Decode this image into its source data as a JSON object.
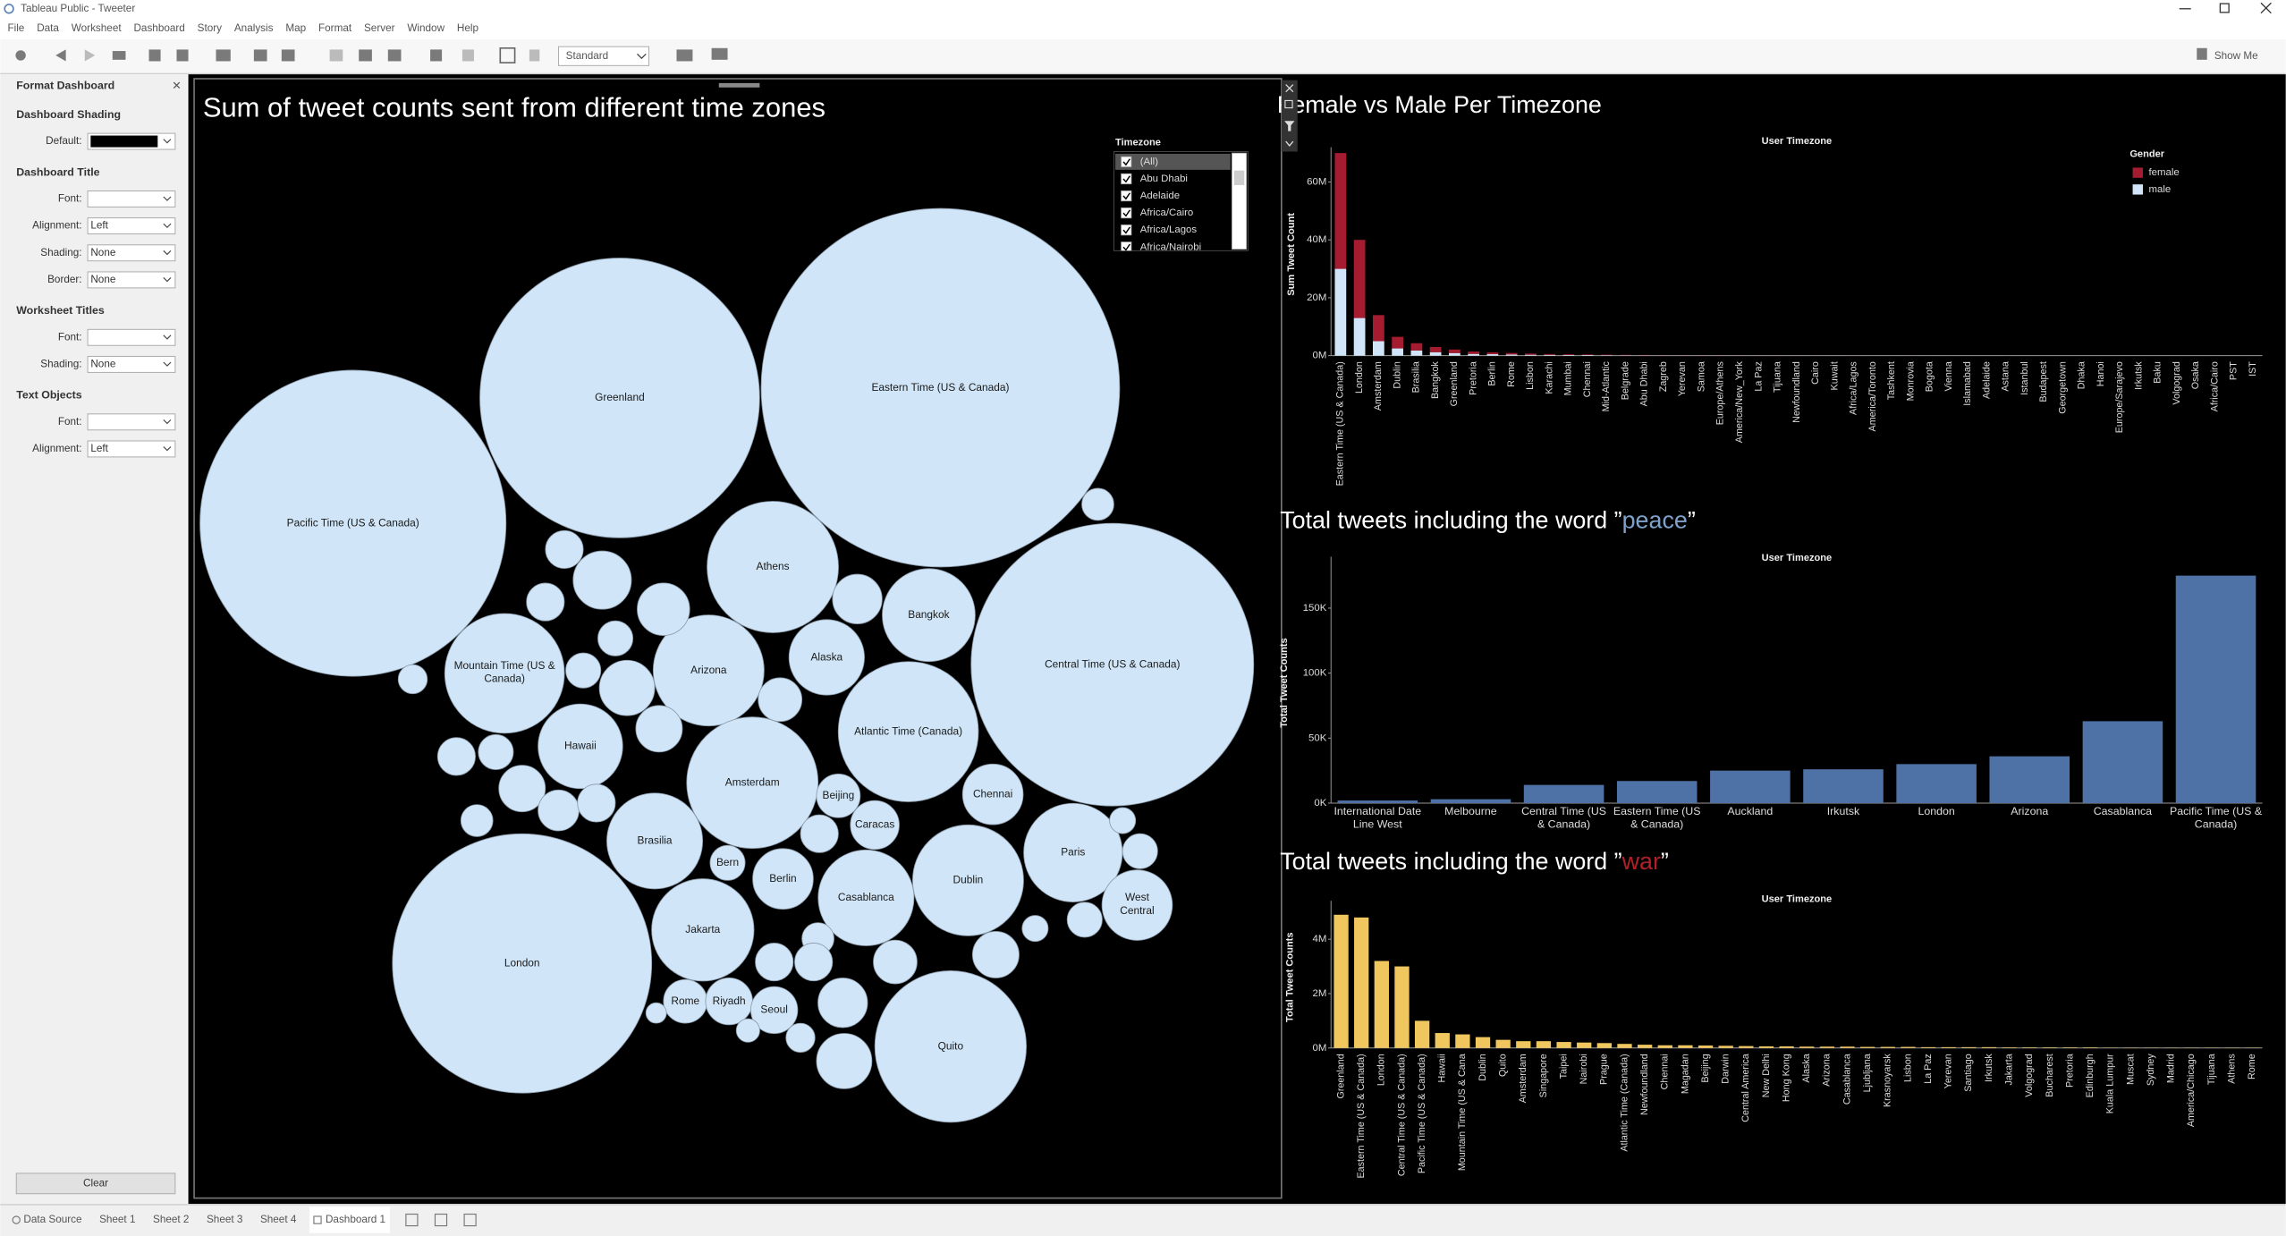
{
  "window": {
    "title": "Tableau Public - Tweeter"
  },
  "menu": [
    "File",
    "Data",
    "Worksheet",
    "Dashboard",
    "Story",
    "Analysis",
    "Map",
    "Format",
    "Server",
    "Window",
    "Help"
  ],
  "toolbar": {
    "view": "Standard",
    "show_me": "Show Me"
  },
  "format_panel": {
    "title": "Format Dashboard",
    "sections": [
      {
        "heading": "Dashboard Shading",
        "fields": [
          {
            "label": "Default:",
            "color": "#000000"
          }
        ]
      },
      {
        "heading": "Dashboard Title",
        "fields": [
          {
            "label": "Font:"
          },
          {
            "label": "Alignment:",
            "value": "Left"
          },
          {
            "label": "Shading:",
            "value": "None"
          },
          {
            "label": "Border:",
            "value": "None"
          }
        ]
      },
      {
        "heading": "Worksheet Titles",
        "fields": [
          {
            "label": "Font:"
          },
          {
            "label": "Shading:",
            "value": "None"
          }
        ]
      },
      {
        "heading": "Text Objects",
        "fields": [
          {
            "label": "Font:"
          },
          {
            "label": "Alignment:",
            "value": "Left"
          }
        ]
      }
    ],
    "clear": "Clear"
  },
  "filter": {
    "title": "Timezone",
    "items": [
      "(All)",
      "Abu Dhabi",
      "Adelaide",
      "Africa/Cairo",
      "Africa/Lagos",
      "Africa/Nairobi"
    ]
  },
  "tabs": [
    "Data Source",
    "Sheet 1",
    "Sheet 2",
    "Sheet 3",
    "Sheet 4",
    "Dashboard 1"
  ],
  "active_tab": 5,
  "chart_data": [
    {
      "type": "bubble",
      "title": "Sum of tweet counts sent from different time zones",
      "color": "#d0e6f8",
      "categories": [
        "Pacific Time (US & Canada)",
        "Greenland",
        "Eastern Time (US & Canada)",
        "Central Time (US & Canada)",
        "London",
        "Quito",
        "Athens",
        "Mountain Time (US & Canada)",
        "Arizona",
        "Atlantic Time (Canada)",
        "Amsterdam",
        "Hawaii",
        "Bangkok",
        "Alaska",
        "Brasilia",
        "Jakarta",
        "Casablanca",
        "Dublin",
        "Paris",
        "West Central",
        "Chennai",
        "Berlin",
        "Bern",
        "Beijing",
        "Caracas",
        "Rome",
        "Riyadh",
        "Seoul",
        null,
        null,
        null,
        null,
        null,
        null,
        null,
        null,
        null,
        null,
        null,
        null,
        null,
        null,
        null,
        null,
        null,
        null,
        null,
        null,
        null,
        null,
        null,
        null,
        null,
        null,
        null,
        null,
        null,
        null,
        null,
        null,
        null
      ],
      "values": [
        51000000,
        42600000,
        70000000,
        43500000,
        36600000,
        12500000,
        9400000,
        7800000,
        6700000,
        10700000,
        9400000,
        3900000,
        4700000,
        3100000,
        5000000,
        5700000,
        5000000,
        6700000,
        5300000,
        2700000,
        2000000,
        2000000,
        670000,
        1040000,
        1300000,
        1040000,
        1200000,
        1200000,
        780000,
        1850000,
        780000,
        1500000,
        670000,
        1670000,
        670000,
        1180000,
        780000,
        670000,
        1180000,
        910000,
        780000,
        560000,
        460000,
        560000,
        780000,
        780000,
        1340000,
        1670000,
        1040000,
        1340000,
        1180000,
        560000,
        670000,
        670000,
        370000,
        370000,
        460000,
        300000,
        230000,
        780000,
        1040000
      ]
    },
    {
      "type": "bar",
      "stacked": true,
      "title": "Female vs Male Per Timezone",
      "x_header": "User Timezone",
      "y_label": "Sum Tweet Count",
      "legend_title": "Gender",
      "categories": [
        "Eastern Time (US & Canada)",
        "London",
        "Amsterdam",
        "Dublin",
        "Brasilia",
        "Bangkok",
        "Greenland",
        "Pretoria",
        "Berlin",
        "Rome",
        "Lisbon",
        "Karachi",
        "Mumbai",
        "Chennai",
        "Mid-Atlantic",
        "Belgrade",
        "Abu Dhabi",
        "Zagreb",
        "Yerevan",
        "Samoa",
        "Europe/Athens",
        "America/New_York",
        "La Paz",
        "Tijuana",
        "Newfoundland",
        "Cairo",
        "Kuwait",
        "Africa/Lagos",
        "America/Toronto",
        "Tashkent",
        "Monrovia",
        "Bogota",
        "Vienna",
        "Islamabad",
        "Adelaide",
        "Astana",
        "Istanbul",
        "Budapest",
        "Georgetown",
        "Dhaka",
        "Hanoi",
        "Europe/Sarajevo",
        "Irkutsk",
        "Baku",
        "Volgograd",
        "Osaka",
        "Africa/Cairo",
        "PST",
        "IST"
      ],
      "series": [
        {
          "name": "female",
          "color": "#a51c30",
          "values": [
            40000000,
            27000000,
            9000000,
            4000000,
            2500000,
            1800000,
            1200000,
            800000,
            600000,
            500000,
            400000,
            300000,
            250000,
            200000,
            180000,
            150000,
            120000,
            100000,
            90000,
            80000,
            70000,
            60000,
            50000,
            50000,
            40000,
            40000,
            30000,
            30000,
            20000,
            20000,
            20000,
            15000,
            15000,
            10000,
            10000,
            10000,
            8000,
            8000,
            6000,
            6000,
            5000,
            5000,
            4000,
            4000,
            3000,
            3000,
            2000,
            2000,
            1000
          ]
        },
        {
          "name": "male",
          "color": "#d0e6f8",
          "values": [
            30000000,
            13000000,
            5000000,
            2500000,
            1800000,
            1200000,
            900000,
            600000,
            500000,
            400000,
            300000,
            250000,
            200000,
            200000,
            150000,
            120000,
            100000,
            90000,
            80000,
            70000,
            60000,
            50000,
            50000,
            40000,
            40000,
            30000,
            30000,
            20000,
            20000,
            20000,
            10000,
            10000,
            10000,
            10000,
            10000,
            8000,
            8000,
            6000,
            6000,
            5000,
            5000,
            4000,
            4000,
            3000,
            3000,
            2000,
            2000,
            1000,
            1000
          ]
        }
      ],
      "ylim": [
        0,
        70000000
      ],
      "yticks": [
        {
          "value": 0,
          "label": "0M"
        },
        {
          "value": 20000000,
          "label": "20M"
        },
        {
          "value": 40000000,
          "label": "40M"
        },
        {
          "value": 60000000,
          "label": "60M"
        }
      ]
    },
    {
      "type": "bar",
      "title": [
        "Total tweets including the word ”",
        "peace",
        "”"
      ],
      "title_highlight_color": "#7fa2cc",
      "x_header": "User Timezone",
      "y_label": "Total Tweet Counts",
      "color": "#4f72a6",
      "wrap_labels": true,
      "categories": [
        "International Date Line West",
        "Melbourne",
        "Central Time (US & Canada)",
        "Eastern Time (US & Canada)",
        "Auckland",
        "Irkutsk",
        "London",
        "Arizona",
        "Casablanca",
        "Pacific Time (US & Canada)"
      ],
      "values": [
        2000,
        3000,
        14000,
        17000,
        25000,
        26000,
        30000,
        36000,
        63000,
        175000
      ],
      "ylim": [
        0,
        185000
      ],
      "yticks": [
        {
          "value": 0,
          "label": "0K"
        },
        {
          "value": 50000,
          "label": "50K"
        },
        {
          "value": 100000,
          "label": "100K"
        },
        {
          "value": 150000,
          "label": "150K"
        }
      ]
    },
    {
      "type": "bar",
      "title": [
        "Total  tweets including the word ”",
        "war",
        "”"
      ],
      "title_highlight_color": "#b0202a",
      "x_header": "User Timezone",
      "y_label": "Total Tweet Counts",
      "color": "#f0c75e",
      "categories": [
        "Greenland",
        "Eastern Time (US & Canada)",
        "London",
        "Central Time (US & Canada)",
        "Pacific Time (US & Canada)",
        "Hawaii",
        "Mountain Time (US & Cana",
        "Dublin",
        "Quito",
        "Amsterdam",
        "Singapore",
        "Taipei",
        "Nairobi",
        "Prague",
        "Atlantic Time (Canada)",
        "Newfoundland",
        "Chennai",
        "Magadan",
        "Beijing",
        "Darwin",
        "Central America",
        "New Delhi",
        "Hong Kong",
        "Alaska",
        "Arizona",
        "Casablanca",
        "Ljubljana",
        "Krasnoyarsk",
        "Lisbon",
        "La Paz",
        "Yerevan",
        "Santiago",
        "Irkutsk",
        "Jakarta",
        "Volgograd",
        "Bucharest",
        "Pretoria",
        "Edinburgh",
        "Kuala Lumpur",
        "Muscat",
        "Sydney",
        "Madrid",
        "America/Chicago",
        "Tijuana",
        "Athens",
        "Rome"
      ],
      "values": [
        4900000,
        4800000,
        3200000,
        3000000,
        1000000,
        550000,
        500000,
        400000,
        300000,
        250000,
        250000,
        220000,
        200000,
        180000,
        150000,
        120000,
        100000,
        100000,
        90000,
        80000,
        70000,
        60000,
        60000,
        50000,
        50000,
        50000,
        40000,
        40000,
        40000,
        30000,
        30000,
        30000,
        30000,
        20000,
        20000,
        20000,
        20000,
        20000,
        10000,
        10000,
        10000,
        10000,
        10000,
        10000,
        10000,
        10000
      ],
      "ylim": [
        0,
        5200000
      ],
      "yticks": [
        {
          "value": 0,
          "label": "0M"
        },
        {
          "value": 2000000,
          "label": "2M"
        },
        {
          "value": 4000000,
          "label": "4M"
        }
      ]
    }
  ]
}
